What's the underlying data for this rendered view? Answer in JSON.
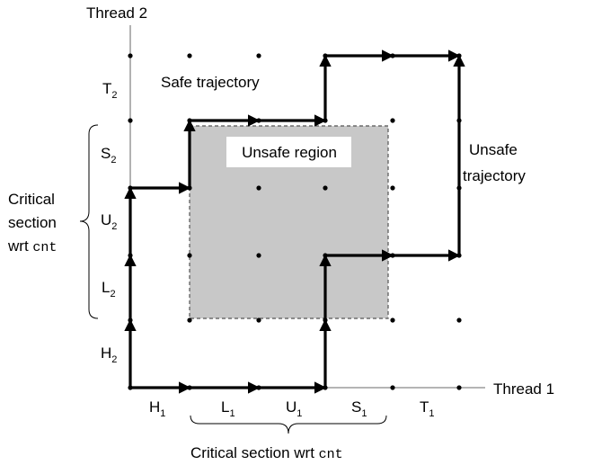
{
  "axes": {
    "x_label": "Thread 1",
    "y_label": "Thread 2",
    "x_segments": [
      {
        "base": "H",
        "sub": "1"
      },
      {
        "base": "L",
        "sub": "1"
      },
      {
        "base": "U",
        "sub": "1"
      },
      {
        "base": "S",
        "sub": "1"
      },
      {
        "base": "T",
        "sub": "1"
      }
    ],
    "y_segments": [
      {
        "base": "H",
        "sub": "2"
      },
      {
        "base": "L",
        "sub": "2"
      },
      {
        "base": "U",
        "sub": "2"
      },
      {
        "base": "S",
        "sub": "2"
      },
      {
        "base": "T",
        "sub": "2"
      }
    ]
  },
  "labels": {
    "safe_trajectory": "Safe trajectory",
    "unsafe_region": "Unsafe region",
    "unsafe_trajectory_line1": "Unsafe",
    "unsafe_trajectory_line2": "trajectory"
  },
  "critical_section_x": {
    "prefix": "Critical section wrt ",
    "var": "cnt"
  },
  "critical_section_y": {
    "line1": "Critical",
    "line2": "section",
    "line3_prefix": "wrt ",
    "var": "cnt"
  },
  "colors": {
    "unsafe_region_fill": "#c8c8c8",
    "path": "#000000",
    "axis": "#888888"
  }
}
